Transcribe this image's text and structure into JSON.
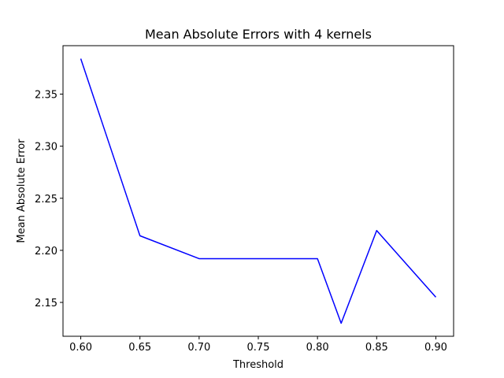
{
  "chart_data": {
    "type": "line",
    "title": "Mean Absolute Errors with 4 kernels",
    "xlabel": "Threshold",
    "ylabel": "Mean Absolute Error",
    "x": [
      0.6,
      0.65,
      0.7,
      0.8,
      0.82,
      0.85,
      0.9
    ],
    "series": [
      {
        "values": [
          2.384,
          2.214,
          2.192,
          2.192,
          2.13,
          2.219,
          2.155
        ],
        "color": "#0000ff"
      }
    ],
    "xlim": [
      0.585,
      0.915
    ],
    "ylim": [
      2.1175,
      2.3965
    ],
    "xticks": [
      0.6,
      0.65,
      0.7,
      0.75,
      0.8,
      0.85,
      0.9
    ],
    "xtick_labels": [
      "0.60",
      "0.65",
      "0.70",
      "0.75",
      "0.80",
      "0.85",
      "0.90"
    ],
    "yticks": [
      2.15,
      2.2,
      2.25,
      2.3,
      2.35
    ],
    "ytick_labels": [
      "2.15",
      "2.20",
      "2.25",
      "2.30",
      "2.35"
    ],
    "grid": false,
    "legend": "none"
  }
}
